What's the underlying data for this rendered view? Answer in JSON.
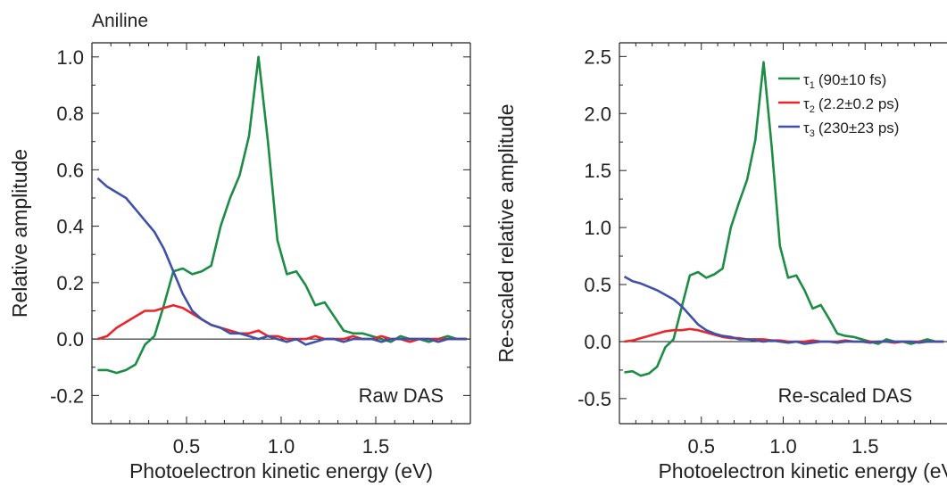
{
  "figure_label": "Aniline",
  "series_colors": {
    "tau1": "#1d8c45",
    "tau2": "#e8262b",
    "tau3": "#3f51a8"
  },
  "legend": [
    {
      "key": "tau1",
      "symbol": "τ",
      "sub": "1",
      "text": "(90±10 fs)"
    },
    {
      "key": "tau2",
      "symbol": "τ",
      "sub": "2",
      "text": "(2.2±0.2 ps)"
    },
    {
      "key": "tau3",
      "symbol": "τ",
      "sub": "3",
      "text": "(230±23 ps)"
    }
  ],
  "chart_data": [
    {
      "type": "line",
      "title": "Aniline",
      "annotation": "Raw DAS",
      "xlabel": "Photoelectron kinetic energy (eV)",
      "ylabel": "Relative amplitude",
      "xlim": [
        0.0,
        2.0
      ],
      "ylim": [
        -0.3,
        1.05
      ],
      "xticks": [
        0.5,
        1.0,
        1.5
      ],
      "xtick_labels": [
        "0.5",
        "1.0",
        "1.5"
      ],
      "yticks": [
        -0.2,
        0.0,
        0.2,
        0.4,
        0.6,
        0.8,
        1.0
      ],
      "ytick_labels": [
        "-0.2",
        "0.0",
        "0.2",
        "0.4",
        "0.6",
        "0.8",
        "1.0"
      ],
      "zero_line": true,
      "x": [
        0.03,
        0.08,
        0.13,
        0.18,
        0.23,
        0.28,
        0.33,
        0.38,
        0.43,
        0.48,
        0.53,
        0.58,
        0.63,
        0.68,
        0.73,
        0.78,
        0.83,
        0.88,
        0.93,
        0.98,
        1.03,
        1.08,
        1.13,
        1.18,
        1.23,
        1.28,
        1.33,
        1.38,
        1.43,
        1.48,
        1.53,
        1.58,
        1.63,
        1.68,
        1.73,
        1.78,
        1.83,
        1.88,
        1.93,
        1.98
      ],
      "series": [
        {
          "key": "tau1",
          "values": [
            -0.11,
            -0.11,
            -0.12,
            -0.11,
            -0.09,
            -0.02,
            0.01,
            0.12,
            0.24,
            0.25,
            0.23,
            0.24,
            0.26,
            0.4,
            0.5,
            0.58,
            0.72,
            1.0,
            0.7,
            0.35,
            0.23,
            0.24,
            0.19,
            0.12,
            0.13,
            0.08,
            0.03,
            0.02,
            0.02,
            0.01,
            0.0,
            -0.01,
            0.01,
            0.0,
            0.0,
            -0.01,
            0.0,
            0.01,
            0.0,
            0.0
          ]
        },
        {
          "key": "tau2",
          "values": [
            0.0,
            0.01,
            0.04,
            0.06,
            0.08,
            0.1,
            0.1,
            0.11,
            0.12,
            0.11,
            0.09,
            0.07,
            0.05,
            0.04,
            0.03,
            0.02,
            0.02,
            0.03,
            0.01,
            0.01,
            0.0,
            0.0,
            0.0,
            0.01,
            0.0,
            0.0,
            0.0,
            0.01,
            0.0,
            0.0,
            0.01,
            0.0,
            0.0,
            -0.01,
            0.0,
            0.0,
            0.0,
            0.0,
            0.0,
            0.0
          ]
        },
        {
          "key": "tau3",
          "values": [
            0.57,
            0.54,
            0.52,
            0.5,
            0.46,
            0.42,
            0.38,
            0.32,
            0.24,
            0.16,
            0.1,
            0.07,
            0.05,
            0.04,
            0.02,
            0.02,
            0.01,
            0.0,
            0.01,
            0.0,
            -0.01,
            0.0,
            -0.02,
            -0.01,
            0.0,
            0.0,
            -0.01,
            0.0,
            0.0,
            0.0,
            -0.01,
            0.0,
            0.0,
            0.0,
            0.0,
            0.0,
            -0.01,
            0.0,
            0.0,
            0.0
          ]
        }
      ]
    },
    {
      "type": "line",
      "annotation": "Re-scaled DAS",
      "xlabel": "Photoelectron kinetic energy (eV)",
      "ylabel": "Re-scaled relative amplitude",
      "xlim": [
        0.0,
        2.0
      ],
      "ylim": [
        -0.72,
        2.62
      ],
      "xticks": [
        0.5,
        1.0,
        1.5
      ],
      "xtick_labels": [
        "0.5",
        "1.0",
        "1.5"
      ],
      "yticks": [
        -0.5,
        0.0,
        0.5,
        1.0,
        1.5,
        2.0,
        2.5
      ],
      "ytick_labels": [
        "-0.5",
        "0.0",
        "0.5",
        "1.0",
        "1.5",
        "2.0",
        "2.5"
      ],
      "zero_line": true,
      "x": [
        0.03,
        0.08,
        0.13,
        0.18,
        0.23,
        0.28,
        0.33,
        0.38,
        0.43,
        0.48,
        0.53,
        0.58,
        0.63,
        0.68,
        0.73,
        0.78,
        0.83,
        0.88,
        0.93,
        0.98,
        1.03,
        1.08,
        1.13,
        1.18,
        1.23,
        1.28,
        1.33,
        1.38,
        1.43,
        1.48,
        1.53,
        1.58,
        1.63,
        1.68,
        1.73,
        1.78,
        1.83,
        1.88,
        1.93,
        1.98
      ],
      "series": [
        {
          "key": "tau1",
          "values": [
            -0.27,
            -0.26,
            -0.3,
            -0.28,
            -0.22,
            -0.05,
            0.02,
            0.3,
            0.58,
            0.61,
            0.56,
            0.59,
            0.64,
            1.0,
            1.22,
            1.42,
            1.77,
            2.45,
            1.7,
            0.84,
            0.56,
            0.58,
            0.45,
            0.29,
            0.32,
            0.2,
            0.07,
            0.05,
            0.04,
            0.02,
            0.0,
            -0.02,
            0.02,
            0.0,
            0.0,
            -0.02,
            0.0,
            0.02,
            0.0,
            0.0
          ]
        },
        {
          "key": "tau2",
          "values": [
            0.0,
            0.01,
            0.03,
            0.05,
            0.07,
            0.09,
            0.1,
            0.1,
            0.11,
            0.1,
            0.08,
            0.06,
            0.04,
            0.03,
            0.03,
            0.02,
            0.02,
            0.02,
            0.01,
            0.01,
            0.0,
            0.0,
            0.0,
            0.01,
            0.0,
            0.0,
            0.0,
            0.01,
            0.0,
            0.0,
            0.0,
            0.0,
            0.0,
            -0.01,
            0.0,
            0.0,
            0.0,
            0.0,
            0.0,
            0.0
          ]
        },
        {
          "key": "tau3",
          "values": [
            0.57,
            0.53,
            0.51,
            0.48,
            0.45,
            0.41,
            0.37,
            0.31,
            0.23,
            0.15,
            0.1,
            0.07,
            0.05,
            0.04,
            0.02,
            0.02,
            0.01,
            0.0,
            0.01,
            0.0,
            -0.01,
            0.0,
            -0.02,
            -0.01,
            0.0,
            0.0,
            -0.01,
            0.0,
            0.0,
            0.0,
            -0.01,
            0.0,
            0.0,
            0.0,
            0.0,
            0.0,
            -0.01,
            0.0,
            0.0,
            0.0
          ]
        }
      ]
    }
  ]
}
